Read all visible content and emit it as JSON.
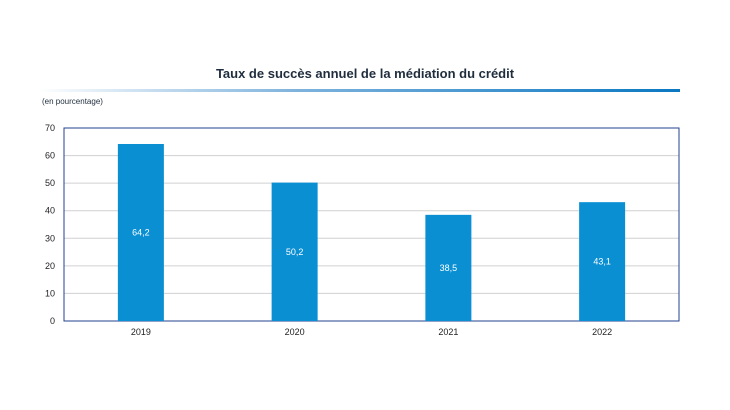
{
  "chart_data": {
    "type": "bar",
    "title": "Taux de succès annuel de la médiation du crédit",
    "unit_note": "(en pourcentage)",
    "categories": [
      "2019",
      "2020",
      "2021",
      "2022"
    ],
    "values": [
      64.2,
      50.2,
      38.5,
      43.1
    ],
    "value_labels": [
      "64,2",
      "50,2",
      "38,5",
      "43,1"
    ],
    "ylim": [
      0,
      70
    ],
    "yticks": [
      0,
      10,
      20,
      30,
      40,
      50,
      60,
      70
    ],
    "grid": true,
    "legend": "none",
    "colors": {
      "bar": "#0a8fd3",
      "axis": "#23408e",
      "grid": "#d0d0d0"
    }
  }
}
